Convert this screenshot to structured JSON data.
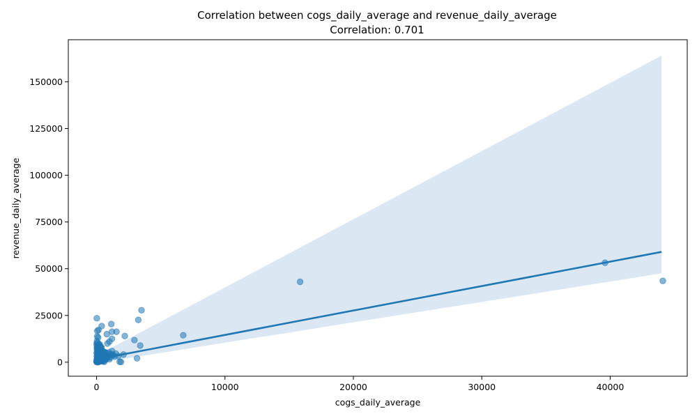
{
  "chart_data": {
    "type": "scatter",
    "title": "Correlation between cogs_daily_average and revenue_daily_average",
    "subtitle": "Correlation: 0.701",
    "xlabel": "cogs_daily_average",
    "ylabel": "revenue_daily_average",
    "xlim": [
      -2200,
      46000
    ],
    "ylim": [
      -7500,
      172500
    ],
    "x_ticks": [
      0,
      10000,
      20000,
      30000,
      40000
    ],
    "y_ticks": [
      0,
      25000,
      50000,
      75000,
      100000,
      125000,
      150000
    ],
    "grid": false,
    "legend": "none",
    "colors": {
      "points": "#1f77b4",
      "line": "#1f77b4",
      "band": "#dbe8f4"
    },
    "regression_line": {
      "x": [
        0,
        44000
      ],
      "y": [
        1500,
        59000
      ]
    },
    "confidence_band": {
      "x": [
        0,
        44000
      ],
      "upper": [
        3500,
        164000
      ],
      "lower": [
        -500,
        47500
      ]
    },
    "points": [
      [
        20,
        23500
      ],
      [
        60,
        16700
      ],
      [
        150,
        17200
      ],
      [
        50,
        13800
      ],
      [
        120,
        13200
      ],
      [
        30,
        11200
      ],
      [
        80,
        10500
      ],
      [
        10,
        9800
      ],
      [
        40,
        9200
      ],
      [
        100,
        8800
      ],
      [
        180,
        8500
      ],
      [
        20,
        8000
      ],
      [
        60,
        7600
      ],
      [
        120,
        7200
      ],
      [
        250,
        7000
      ],
      [
        30,
        6800
      ],
      [
        90,
        6500
      ],
      [
        300,
        6300
      ],
      [
        400,
        6000
      ],
      [
        500,
        5800
      ],
      [
        600,
        5500
      ],
      [
        700,
        5200
      ],
      [
        10,
        5000
      ],
      [
        50,
        4800
      ],
      [
        150,
        4600
      ],
      [
        250,
        4400
      ],
      [
        350,
        4200
      ],
      [
        450,
        4000
      ],
      [
        550,
        3800
      ],
      [
        650,
        3600
      ],
      [
        750,
        3400
      ],
      [
        20,
        3200
      ],
      [
        80,
        3000
      ],
      [
        160,
        2800
      ],
      [
        260,
        2600
      ],
      [
        360,
        2400
      ],
      [
        460,
        2200
      ],
      [
        560,
        2000
      ],
      [
        660,
        1800
      ],
      [
        760,
        1600
      ],
      [
        30,
        1400
      ],
      [
        100,
        1200
      ],
      [
        200,
        1000
      ],
      [
        300,
        800
      ],
      [
        400,
        600
      ],
      [
        500,
        400
      ],
      [
        600,
        200
      ],
      [
        10,
        100
      ],
      [
        60,
        50
      ],
      [
        120,
        0
      ],
      [
        200,
        300
      ],
      [
        280,
        500
      ],
      [
        340,
        700
      ],
      [
        5,
        200
      ],
      [
        15,
        400
      ],
      [
        25,
        600
      ],
      [
        35,
        900
      ],
      [
        45,
        1100
      ],
      [
        55,
        1300
      ],
      [
        65,
        1500
      ],
      [
        75,
        1700
      ],
      [
        85,
        1900
      ],
      [
        95,
        2100
      ],
      [
        105,
        2300
      ],
      [
        115,
        2500
      ],
      [
        125,
        2700
      ],
      [
        135,
        2900
      ],
      [
        145,
        3100
      ],
      [
        155,
        3300
      ],
      [
        165,
        3500
      ],
      [
        175,
        3700
      ],
      [
        185,
        3900
      ],
      [
        195,
        4100
      ],
      [
        205,
        4300
      ],
      [
        215,
        4500
      ],
      [
        225,
        4700
      ],
      [
        235,
        4900
      ],
      [
        245,
        5100
      ],
      [
        255,
        5300
      ],
      [
        265,
        5500
      ],
      [
        275,
        5700
      ],
      [
        285,
        5900
      ],
      [
        295,
        6100
      ],
      [
        305,
        6300
      ],
      [
        315,
        6600
      ],
      [
        330,
        6900
      ],
      [
        345,
        7300
      ],
      [
        360,
        7700
      ],
      [
        375,
        8100
      ],
      [
        8,
        500
      ],
      [
        18,
        800
      ],
      [
        28,
        1200
      ],
      [
        38,
        1600
      ],
      [
        48,
        2000
      ],
      [
        58,
        2400
      ],
      [
        68,
        2800
      ],
      [
        78,
        3200
      ],
      [
        88,
        3600
      ],
      [
        98,
        4000
      ],
      [
        108,
        4400
      ],
      [
        118,
        4800
      ],
      [
        128,
        5200
      ],
      [
        138,
        5600
      ],
      [
        148,
        6000
      ],
      [
        158,
        6400
      ],
      [
        168,
        6800
      ],
      [
        178,
        7200
      ],
      [
        188,
        7600
      ],
      [
        198,
        8000
      ],
      [
        208,
        8400
      ],
      [
        218,
        8800
      ],
      [
        228,
        9200
      ],
      [
        238,
        9600
      ],
      [
        400,
        19300
      ],
      [
        1150,
        20400
      ],
      [
        1200,
        16300
      ],
      [
        1550,
        16300
      ],
      [
        800,
        15000
      ],
      [
        2200,
        14000
      ],
      [
        1200,
        12500
      ],
      [
        1000,
        11000
      ],
      [
        850,
        10000
      ],
      [
        2950,
        11800
      ],
      [
        3500,
        27800
      ],
      [
        3250,
        22600
      ],
      [
        3400,
        8900
      ],
      [
        6750,
        14400
      ],
      [
        15850,
        43000
      ],
      [
        39600,
        53200
      ],
      [
        44100,
        43500
      ],
      [
        3150,
        2100
      ],
      [
        1900,
        100
      ],
      [
        1800,
        200
      ],
      [
        2100,
        4100
      ],
      [
        1700,
        3300
      ],
      [
        1500,
        4600
      ],
      [
        1200,
        6000
      ],
      [
        1000,
        1500
      ],
      [
        1300,
        3700
      ],
      [
        1100,
        4200
      ],
      [
        900,
        2800
      ],
      [
        700,
        3200
      ],
      [
        600,
        4400
      ],
      [
        500,
        5600
      ],
      [
        800,
        2300
      ],
      [
        650,
        1100
      ],
      [
        450,
        700
      ],
      [
        350,
        2800
      ],
      [
        550,
        3100
      ],
      [
        750,
        4800
      ],
      [
        950,
        5200
      ],
      [
        1050,
        2600
      ],
      [
        1250,
        4100
      ],
      [
        1400,
        3000
      ]
    ]
  }
}
